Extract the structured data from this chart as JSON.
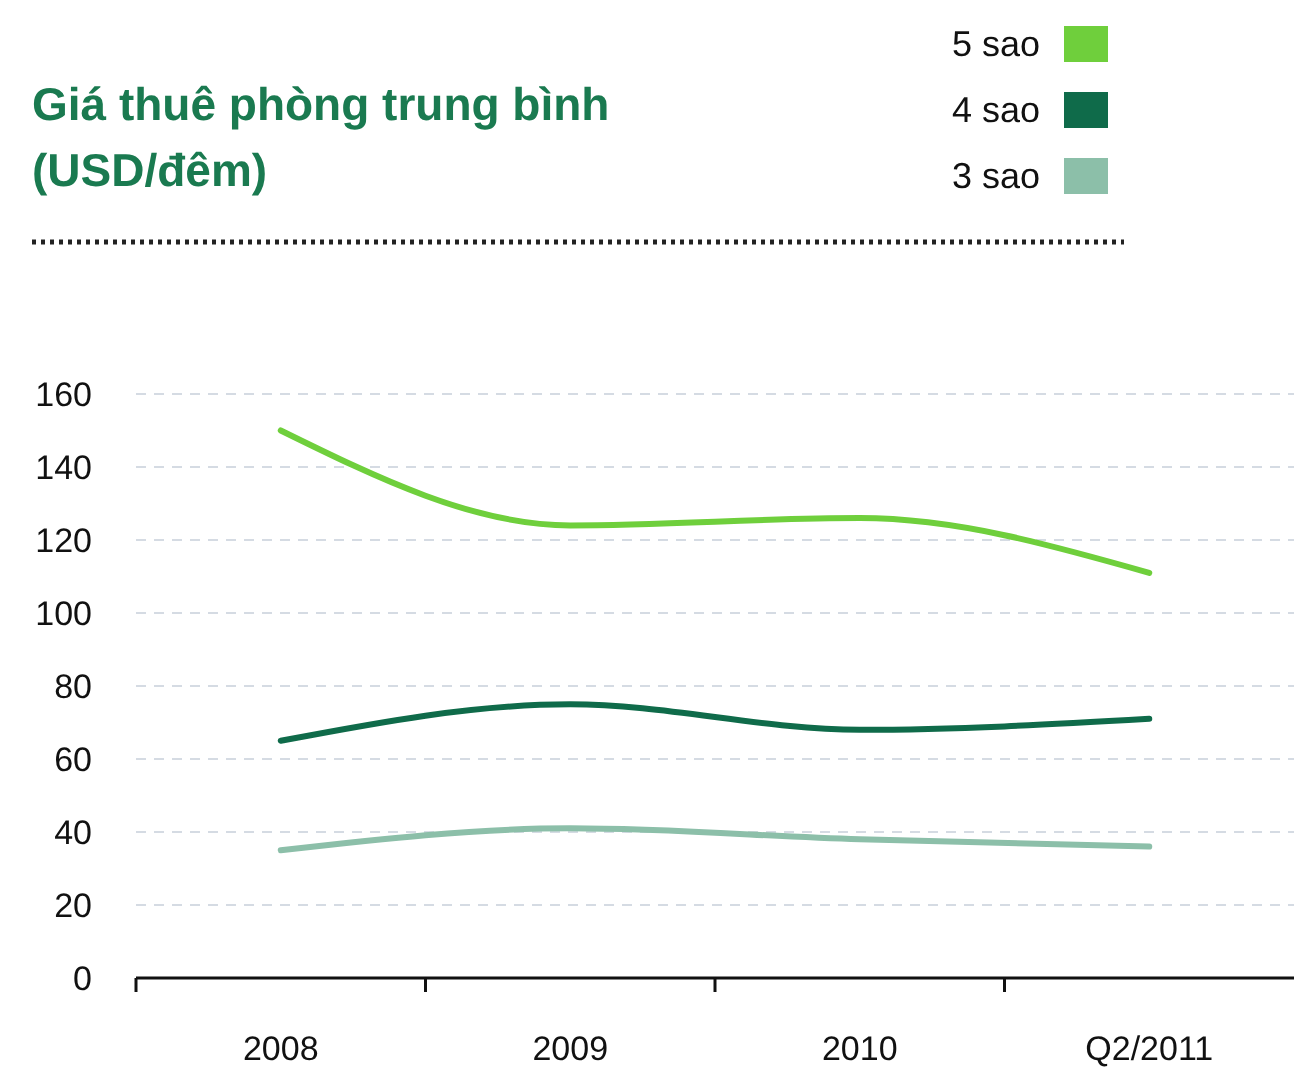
{
  "chart_data": {
    "type": "line",
    "title": "Giá thuê phòng trung bình (USD/đêm)",
    "categories": [
      "2008",
      "2009",
      "2010",
      "Q2/2011"
    ],
    "series": [
      {
        "name": "5 sao",
        "color": "#6fcf3c",
        "values": [
          150,
          124,
          126,
          111
        ]
      },
      {
        "name": "4 sao",
        "color": "#0f6b4a",
        "values": [
          65,
          75,
          68,
          71
        ]
      },
      {
        "name": "3 sao",
        "color": "#8cbfa9",
        "values": [
          35,
          41,
          38,
          36
        ]
      }
    ],
    "ylim": [
      0,
      160
    ],
    "yticks": [
      0,
      20,
      40,
      60,
      80,
      100,
      120,
      140,
      160
    ],
    "grid": "y",
    "legend": "top right",
    "line_style": "solid",
    "marker": "none"
  }
}
